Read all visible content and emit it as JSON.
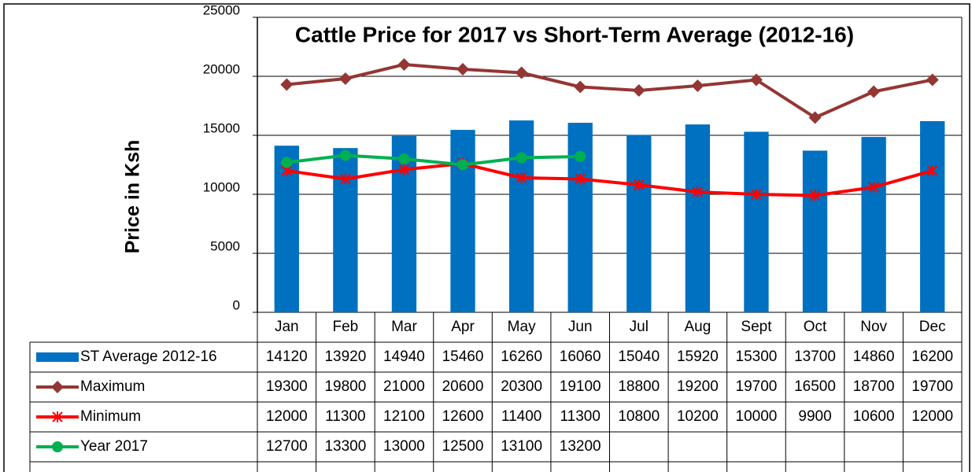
{
  "chart_data": {
    "type": "bar",
    "title": "Cattle Price for  2017 vs Short-Term Average (2012-16)",
    "y_label": "Price in Ksh",
    "categories": [
      "Jan",
      "Feb",
      "Mar",
      "Apr",
      "May",
      "Jun",
      "Jul",
      "Aug",
      "Sept",
      "Oct",
      "Nov",
      "Dec"
    ],
    "series": [
      {
        "name": "ST Average 2012-16",
        "type": "bar",
        "color": "#0070c0",
        "values": [
          14120,
          13920,
          14940,
          15460,
          16260,
          16060,
          15040,
          15920,
          15300,
          13700,
          14860,
          16200
        ]
      },
      {
        "name": "Maximum",
        "type": "line",
        "marker": "diamond",
        "color": "#943634",
        "values": [
          19300,
          19800,
          21000,
          20600,
          20300,
          19100,
          18800,
          19200,
          19700,
          16500,
          18700,
          19700
        ]
      },
      {
        "name": "Minimum",
        "type": "line",
        "marker": "star",
        "color": "#ff0000",
        "values": [
          12000,
          11300,
          12100,
          12600,
          11400,
          11300,
          10800,
          10200,
          10000,
          9900,
          10600,
          12000
        ]
      },
      {
        "name": "Year 2017",
        "type": "line",
        "marker": "circle",
        "color": "#00b050",
        "values": [
          12700,
          13300,
          13000,
          12500,
          13100,
          13200,
          null,
          null,
          null,
          null,
          null,
          null
        ]
      }
    ],
    "ylim": [
      0,
      25000
    ],
    "yticks": [
      0,
      5000,
      10000,
      15000,
      20000,
      25000
    ],
    "grid": true,
    "data_table": true
  }
}
